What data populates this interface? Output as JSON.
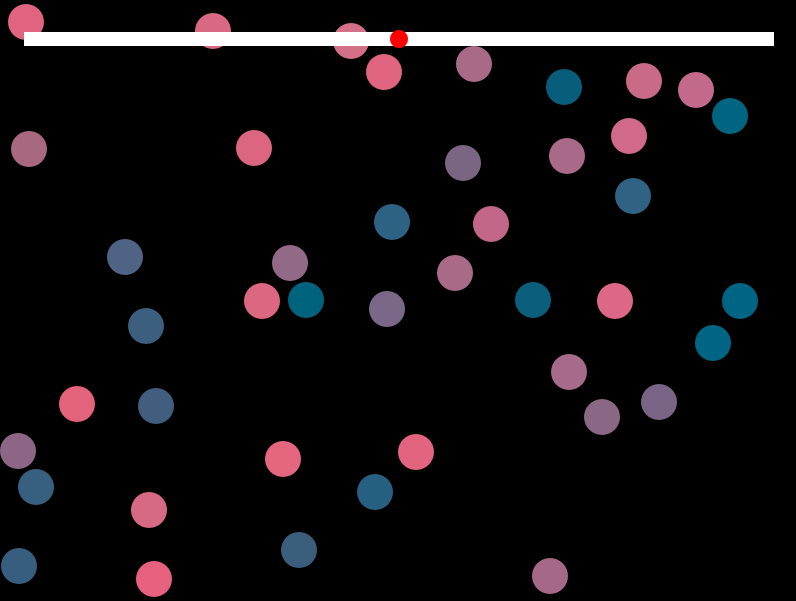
{
  "game": {
    "background_color": "#000000",
    "progress_bar": {
      "track_color": "#ffffff",
      "marker_color": "#ff0000",
      "marker_fraction": 0.5
    },
    "circle_count": 48
  }
}
